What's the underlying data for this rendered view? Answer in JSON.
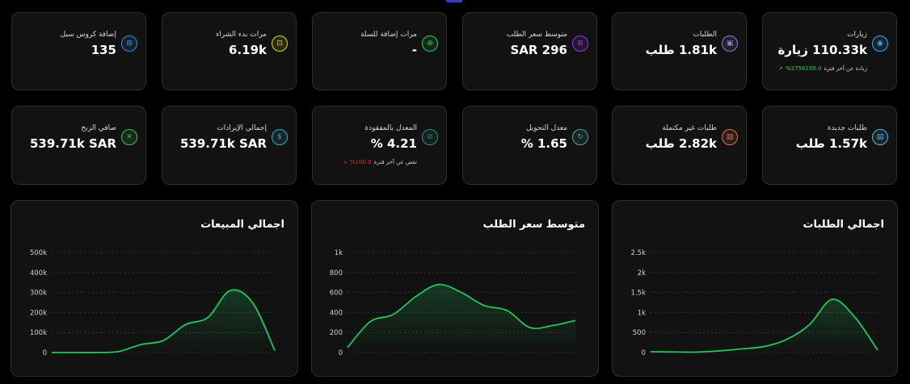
{
  "stats_row1": [
    {
      "title": "زيارات",
      "value": "110.33k زيارة",
      "icon": "eye-icon",
      "color": "#4aa3e8",
      "glyph": "◉",
      "trend": {
        "pct": "2758150.0%",
        "text": "زيادة عن آخر فترة",
        "color": "#2ecc4f",
        "arrow": "↗"
      }
    },
    {
      "title": "الطلبات",
      "value": "1.81k طلب",
      "icon": "box-icon",
      "color": "#8a7fd0",
      "glyph": "▣"
    },
    {
      "title": "متوسط سعر الطلب",
      "value": "SAR 296",
      "icon": "cart-icon",
      "color": "#8e3ee6",
      "glyph": "⊞"
    },
    {
      "title": "مرات إضافة للسلة",
      "value": "-",
      "icon": "add-cart-icon",
      "color": "#2ecc4f",
      "glyph": "⊕"
    },
    {
      "title": "مرات بدء الشراء",
      "value": "6.19k",
      "icon": "checkout-cart-icon",
      "color": "#d8d020",
      "glyph": "⊡"
    },
    {
      "title": "إضافة كروس سيل",
      "value": "135",
      "icon": "cross-sell-icon",
      "color": "#3a8ae0",
      "glyph": "⊞"
    }
  ],
  "stats_row2": [
    {
      "title": "طلبات جديدة",
      "value": "1.57k طلب",
      "icon": "new-order-icon",
      "color": "#5ab0e0",
      "glyph": "▤"
    },
    {
      "title": "طلبات غير مكتملة",
      "value": "2.82k طلب",
      "icon": "incomplete-order-icon",
      "color": "#e06a5a",
      "glyph": "▧"
    },
    {
      "title": "معدل التحويل",
      "value": "1.65 %",
      "icon": "conversion-icon",
      "color": "#5aa0a0",
      "glyph": "↻"
    },
    {
      "title": "المعدل بالمفقودة",
      "value": "4.21 %",
      "icon": "lost-rate-icon",
      "color": "#2a8a80",
      "glyph": "⊘",
      "trend": {
        "pct": "100.0%",
        "text": "نقص عن آخر فترة",
        "color": "#e03030",
        "arrow": "↘"
      }
    },
    {
      "title": "إجمالي الإيرادات",
      "value": "539.71k SAR",
      "icon": "revenue-icon",
      "color": "#3aaad0",
      "glyph": "$"
    },
    {
      "title": "صافي الربح",
      "value": "539.71k SAR",
      "icon": "profit-icon",
      "color": "#2ecc4f",
      "glyph": "✕"
    }
  ],
  "charts": {
    "orders": {
      "title": "اجمالي الطلبات"
    },
    "avg": {
      "title": "متوسط سعر الطلب"
    },
    "sales": {
      "title": "اجمالي المبيعات"
    }
  },
  "chart_data": [
    {
      "type": "area",
      "title": "اجمالي الطلبات",
      "yticks": [
        "0",
        "500",
        "1k",
        "1.5k",
        "2k",
        "2.5k"
      ],
      "ylim": [
        0,
        2500
      ],
      "values": [
        20,
        15,
        10,
        40,
        90,
        150,
        330,
        700,
        1330,
        880,
        60
      ],
      "color": "#22c55e"
    },
    {
      "type": "area",
      "title": "متوسط سعر الطلب",
      "yticks": [
        "0",
        "200",
        "400",
        "600",
        "800",
        "1k"
      ],
      "ylim": [
        0,
        1000
      ],
      "values": [
        50,
        310,
        380,
        560,
        680,
        600,
        470,
        420,
        250,
        270,
        320
      ],
      "color": "#22c55e"
    },
    {
      "type": "area",
      "title": "اجمالي المبيعات",
      "yticks": [
        "0",
        "100k",
        "200k",
        "300k",
        "400k",
        "500k"
      ],
      "ylim": [
        0,
        500000
      ],
      "values": [
        0,
        0,
        0,
        5000,
        40000,
        60000,
        140000,
        175000,
        310000,
        250000,
        10000
      ],
      "color": "#22c55e"
    }
  ]
}
